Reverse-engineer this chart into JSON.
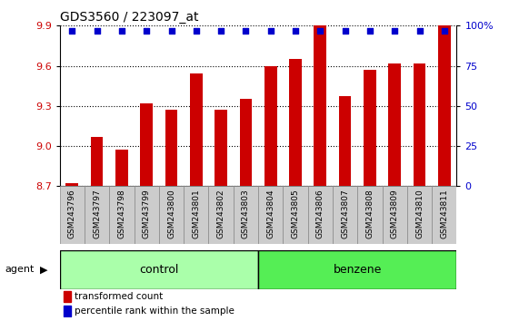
{
  "title": "GDS3560 / 223097_at",
  "samples": [
    "GSM243796",
    "GSM243797",
    "GSM243798",
    "GSM243799",
    "GSM243800",
    "GSM243801",
    "GSM243802",
    "GSM243803",
    "GSM243804",
    "GSM243805",
    "GSM243806",
    "GSM243807",
    "GSM243808",
    "GSM243809",
    "GSM243810",
    "GSM243811"
  ],
  "values": [
    8.72,
    9.07,
    8.97,
    9.32,
    9.27,
    9.54,
    9.27,
    9.35,
    9.6,
    9.65,
    9.9,
    9.37,
    9.57,
    9.62,
    9.62,
    9.9
  ],
  "percentiles": [
    98,
    98,
    98,
    98,
    98,
    98,
    98,
    98,
    98,
    98,
    100,
    98,
    98,
    98,
    98,
    100
  ],
  "bar_color": "#cc0000",
  "dot_color": "#0000cc",
  "ylim_min": 8.7,
  "ylim_max": 9.9,
  "yticks": [
    8.7,
    9.0,
    9.3,
    9.6,
    9.9
  ],
  "right_yticks": [
    0,
    25,
    50,
    75,
    100
  ],
  "right_ytick_labels": [
    "0",
    "25",
    "50",
    "75",
    "100%"
  ],
  "groups": [
    {
      "label": "control",
      "start": 0,
      "end": 8,
      "color": "#aaffaa"
    },
    {
      "label": "benzene",
      "start": 8,
      "end": 16,
      "color": "#55ee55"
    }
  ],
  "agent_label": "agent",
  "legend1_label": "transformed count",
  "legend2_label": "percentile rank within the sample",
  "background_color": "#ffffff",
  "plot_bg_color": "#ffffff",
  "grid_color": "#000000",
  "tick_label_color": "#cc0000",
  "right_tick_label_color": "#0000cc",
  "bar_width": 0.5,
  "sample_box_color": "#cccccc",
  "sample_box_edge": "#888888"
}
